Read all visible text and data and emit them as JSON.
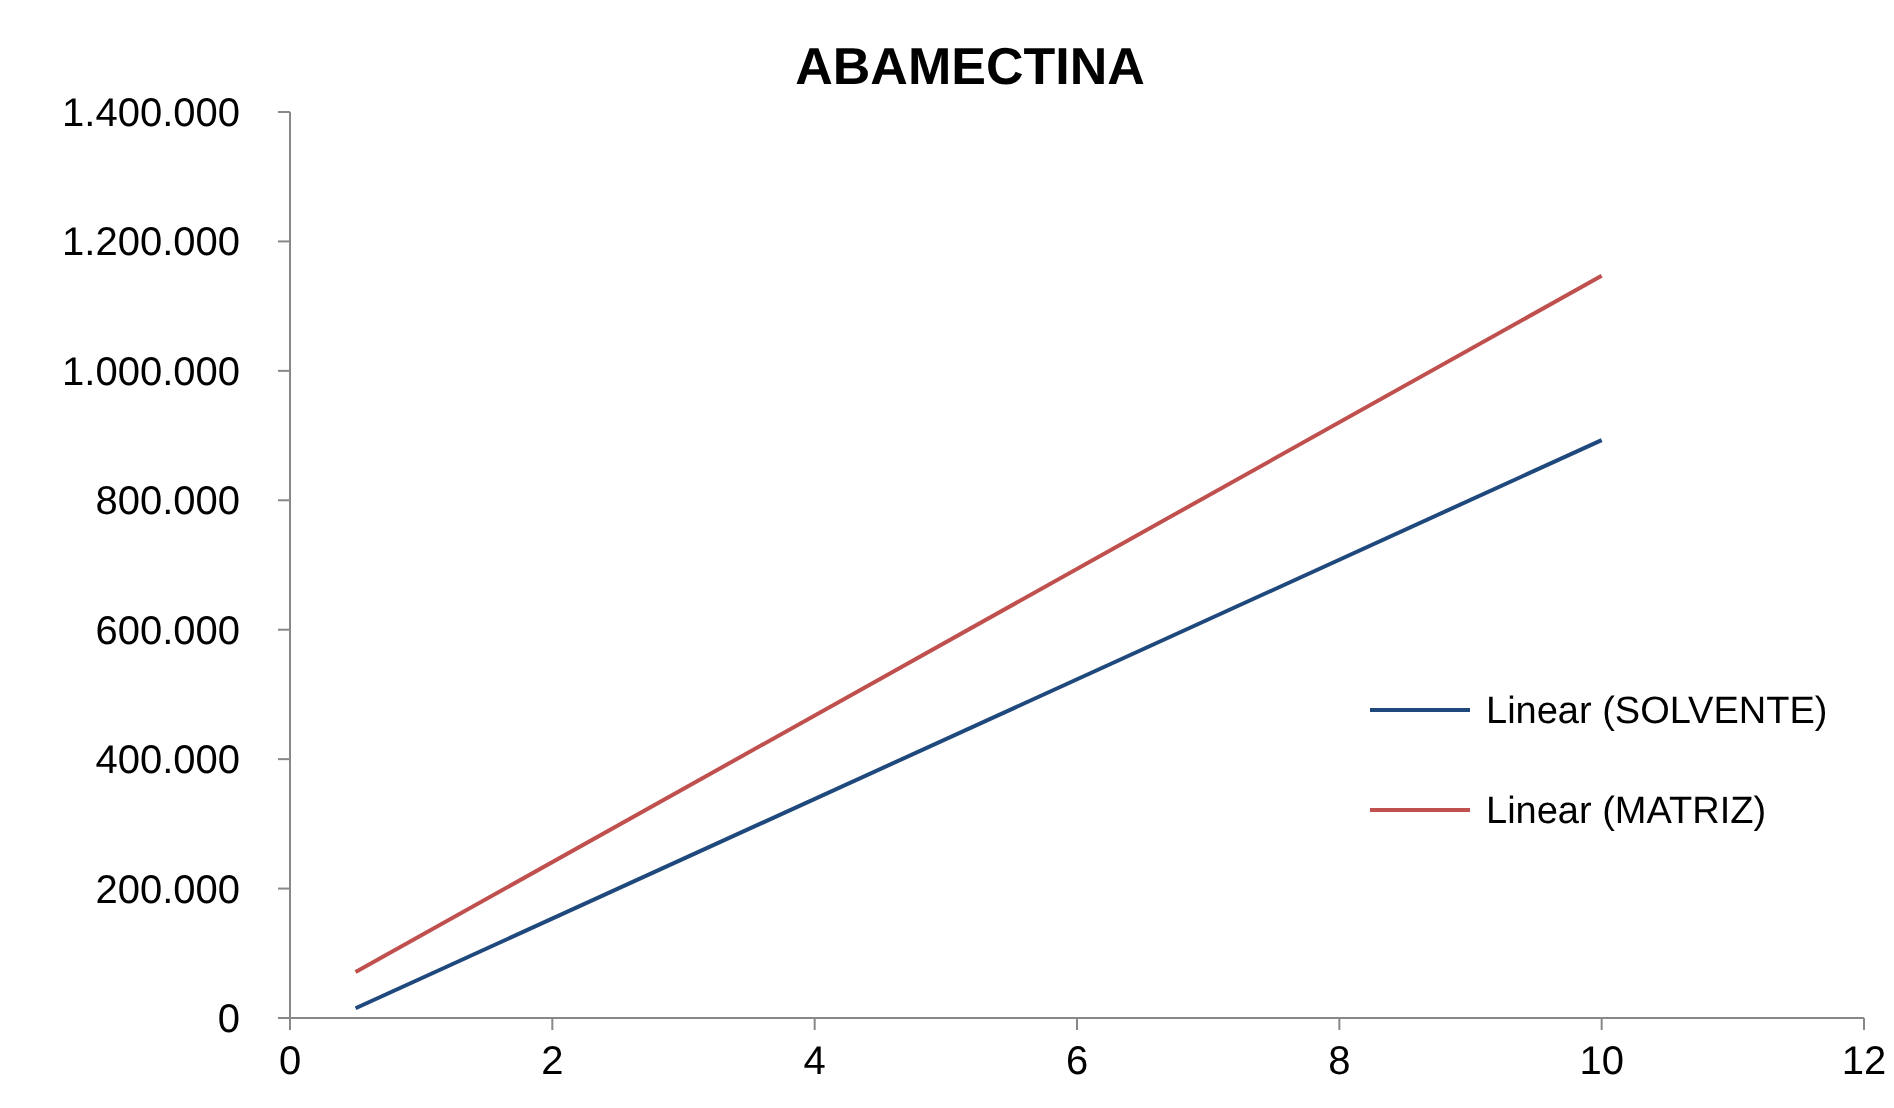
{
  "chart_data": {
    "type": "line",
    "title": "ABAMECTINA",
    "legend": "right",
    "grid": false,
    "marker": "none",
    "line_style": "solid",
    "xlim": [
      0,
      12
    ],
    "x": [
      0.5,
      10
    ],
    "xticks": [
      0,
      2,
      4,
      6,
      8,
      10,
      12
    ],
    "ylim": [
      0,
      1400000
    ],
    "yticks": [
      0,
      {
        "value": 200000,
        "label": "200.000"
      },
      {
        "value": 400000,
        "label": "400.000"
      },
      {
        "value": 600000,
        "label": "600.000"
      },
      {
        "value": 800000,
        "label": "800.000"
      },
      {
        "value": 1000000,
        "label": "1.000.000"
      },
      {
        "value": 1200000,
        "label": "1.200.000"
      },
      {
        "value": 1400000,
        "label": "1.400.000"
      }
    ],
    "series": [
      {
        "name": "Linear (SOLVENTE)",
        "color": "#1f497d",
        "values": [
          15000,
          893000
        ]
      },
      {
        "name": "Linear (MATRIZ)",
        "color": "#c0504d",
        "values": [
          71000,
          1147000
        ]
      }
    ]
  }
}
